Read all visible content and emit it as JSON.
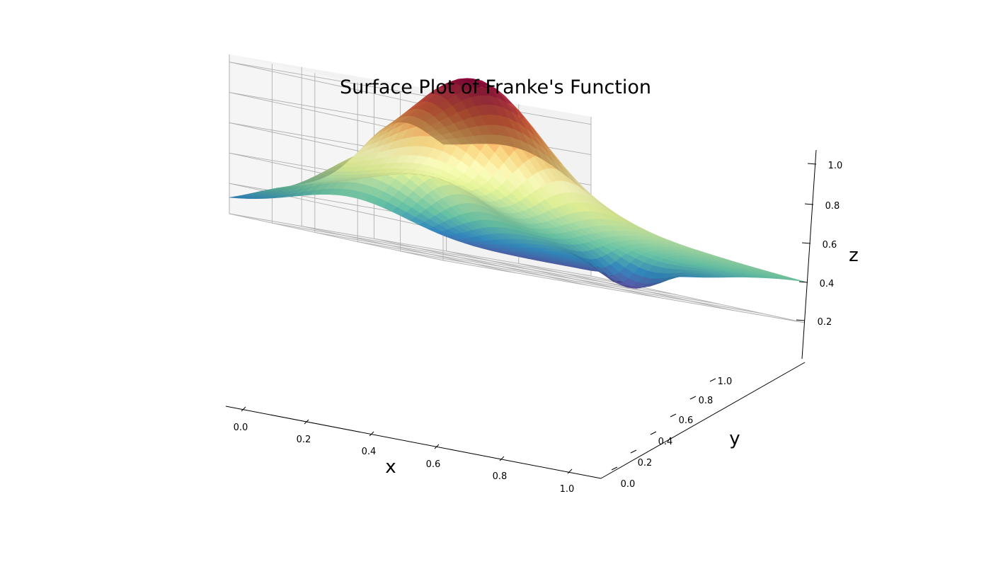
{
  "chart_data": {
    "type": "surface",
    "title": "Surface Plot of Franke's Function",
    "xlabel": "x",
    "ylabel": "y",
    "zlabel": "z",
    "xlim": [
      0,
      1
    ],
    "ylim": [
      0,
      1
    ],
    "zlim": [
      0,
      1.05
    ],
    "x_ticks": [
      "0.0",
      "0.2",
      "0.4",
      "0.6",
      "0.8",
      "1.0"
    ],
    "y_ticks": [
      "0.0",
      "0.2",
      "0.4",
      "0.6",
      "0.8",
      "1.0"
    ],
    "z_ticks": [
      "0.2",
      "0.4",
      "0.6",
      "0.8",
      "1.0"
    ],
    "function": "Franke's function",
    "colormap": "Spectral_r",
    "grid": true,
    "pane_color": "#f2f2f2"
  }
}
